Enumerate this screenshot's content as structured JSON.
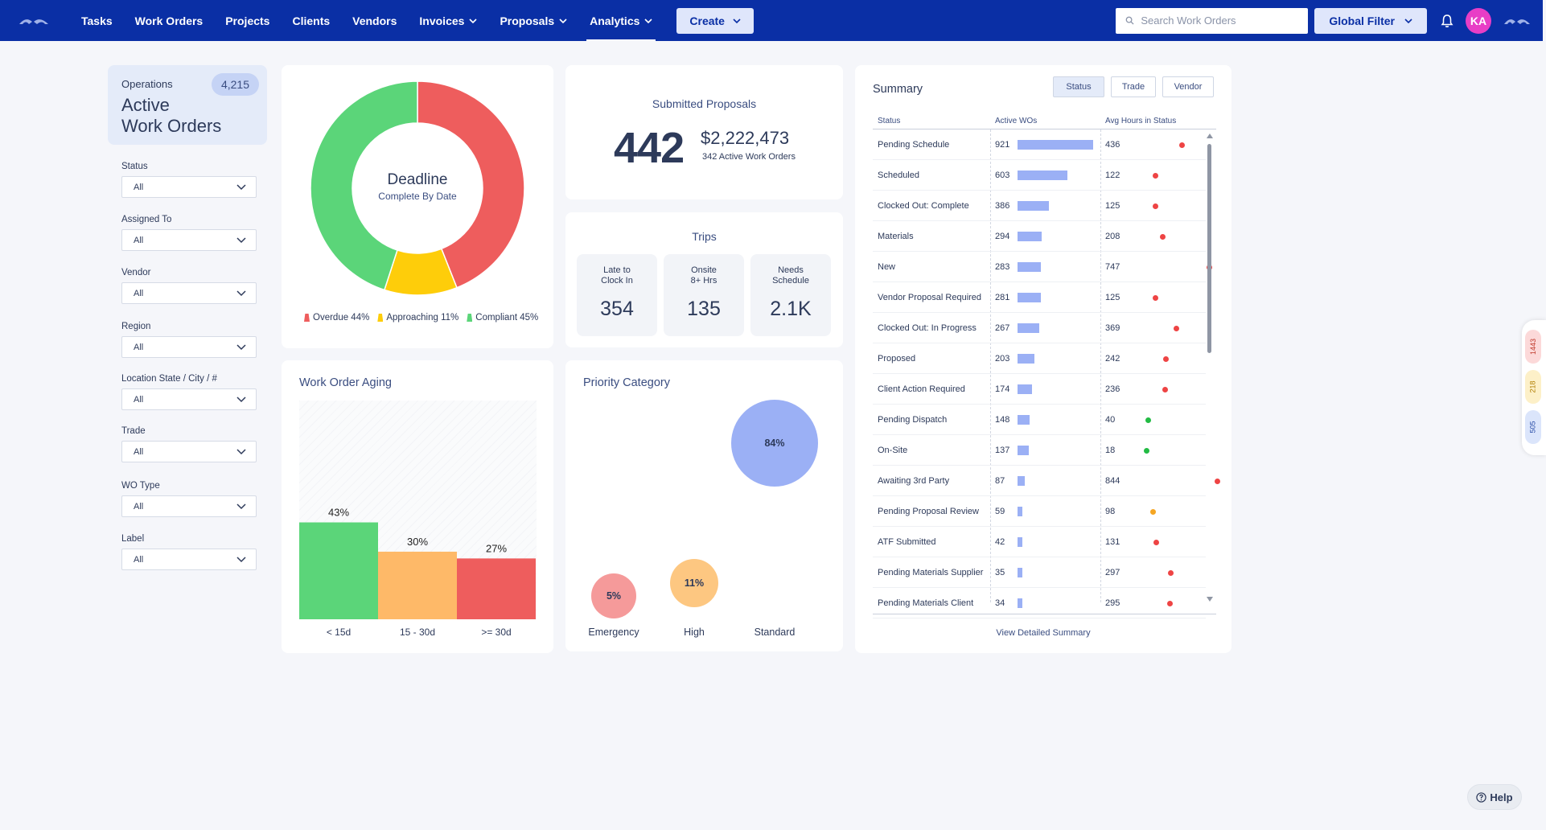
{
  "nav": {
    "items": [
      {
        "label": "Tasks",
        "dropdown": false
      },
      {
        "label": "Work Orders",
        "dropdown": false
      },
      {
        "label": "Projects",
        "dropdown": false
      },
      {
        "label": "Clients",
        "dropdown": false
      },
      {
        "label": "Vendors",
        "dropdown": false
      },
      {
        "label": "Invoices",
        "dropdown": true
      },
      {
        "label": "Proposals",
        "dropdown": true
      },
      {
        "label": "Analytics",
        "dropdown": true
      }
    ],
    "create_label": "Create",
    "search_placeholder": "Search Work Orders",
    "global_filter_label": "Global Filter",
    "avatar_initials": "KA",
    "colors": {
      "bar": "#0a2fa5",
      "avatar": "#e83ec6"
    }
  },
  "sidebar": {
    "kicker": "Operations",
    "title_line1": "Active",
    "title_line2": "Work Orders",
    "count": "4,215",
    "filters": [
      {
        "label": "Status",
        "value": "All"
      },
      {
        "label": "Assigned To",
        "value": "All"
      },
      {
        "label": "Vendor",
        "value": "All"
      },
      {
        "label": "Region",
        "value": "All"
      },
      {
        "label": "Location State / City / #",
        "value": "All"
      },
      {
        "label": "Trade",
        "value": "All"
      },
      {
        "label": "WO Type",
        "value": "All"
      },
      {
        "label": "Label",
        "value": "All"
      }
    ]
  },
  "deadline": {
    "center_title": "Deadline",
    "center_sub": "Complete By Date",
    "legend": [
      {
        "label": "Overdue 44%",
        "color": "#ee5d5d"
      },
      {
        "label": "Approaching 11%",
        "color": "#fecd0a"
      },
      {
        "label": "Compliant 45%",
        "color": "#5bd579"
      }
    ]
  },
  "proposals": {
    "title": "Submitted Proposals",
    "count": "442",
    "amount": "$2,222,473",
    "sub": "342 Active Work Orders"
  },
  "trips": {
    "title": "Trips",
    "boxes": [
      {
        "label": "Late to\nClock In",
        "value": "354"
      },
      {
        "label": "Onsite\n8+ Hrs",
        "value": "135"
      },
      {
        "label": "Needs\nSchedule",
        "value": "2.1K"
      }
    ]
  },
  "aging": {
    "title": "Work Order Aging"
  },
  "priority": {
    "title": "Priority Category"
  },
  "summary": {
    "title": "Summary",
    "tabs": [
      "Status",
      "Trade",
      "Vendor"
    ],
    "columns": [
      "Status",
      "Active WOs",
      "Avg Hours in Status"
    ],
    "rows": [
      {
        "status": "Pending Schedule",
        "active": 921,
        "hours": 436,
        "dot": "#ee4444"
      },
      {
        "status": "Scheduled",
        "active": 603,
        "hours": 122,
        "dot": "#ee4444"
      },
      {
        "status": "Clocked Out: Complete",
        "active": 386,
        "hours": 125,
        "dot": "#ee4444"
      },
      {
        "status": "Materials",
        "active": 294,
        "hours": 208,
        "dot": "#ee4444"
      },
      {
        "status": "New",
        "active": 283,
        "hours": 747,
        "dot": "#ee4444"
      },
      {
        "status": "Vendor Proposal Required",
        "active": 281,
        "hours": 125,
        "dot": "#ee4444"
      },
      {
        "status": "Clocked Out: In Progress",
        "active": 267,
        "hours": 369,
        "dot": "#ee4444"
      },
      {
        "status": "Proposed",
        "active": 203,
        "hours": 242,
        "dot": "#ee4444"
      },
      {
        "status": "Client Action Required",
        "active": 174,
        "hours": 236,
        "dot": "#ee4444"
      },
      {
        "status": "Pending Dispatch",
        "active": 148,
        "hours": 40,
        "dot": "#22bb44"
      },
      {
        "status": "On-Site",
        "active": 137,
        "hours": 18,
        "dot": "#22bb44"
      },
      {
        "status": "Awaiting 3rd Party",
        "active": 87,
        "hours": 844,
        "dot": "#ee4444"
      },
      {
        "status": "Pending Proposal Review",
        "active": 59,
        "hours": 98,
        "dot": "#f5a623"
      },
      {
        "status": "ATF Submitted",
        "active": 42,
        "hours": 131,
        "dot": "#ee4444"
      },
      {
        "status": "Pending Materials Supplier",
        "active": 35,
        "hours": 297,
        "dot": "#ee4444"
      },
      {
        "status": "Pending Materials Client",
        "active": 34,
        "hours": 295,
        "dot": "#ee4444"
      }
    ],
    "link": "View Detailed Summary"
  },
  "side_pill": [
    {
      "label": "1443",
      "bg": "#fcd9d9",
      "fg": "#c0392b"
    },
    {
      "label": "218",
      "bg": "#fdf0c8",
      "fg": "#b07d00"
    },
    {
      "label": "505",
      "bg": "#dbe5fb",
      "fg": "#2a4ea8"
    }
  ],
  "help_label": "Help",
  "chart_data": [
    {
      "type": "pie",
      "title": "Deadline",
      "subtitle": "Complete By Date",
      "categories": [
        "Overdue",
        "Approaching",
        "Compliant"
      ],
      "values": [
        44,
        11,
        45
      ],
      "colors": [
        "#ee5d5d",
        "#fecd0a",
        "#5bd579"
      ]
    },
    {
      "type": "bar",
      "title": "Work Order Aging",
      "categories": [
        "< 15d",
        "15 - 30d",
        ">= 30d"
      ],
      "values": [
        43,
        30,
        27
      ],
      "labels": [
        "43%",
        "30%",
        "27%"
      ],
      "colors": [
        "#5bd579",
        "#feb968",
        "#ee5d5d"
      ],
      "ylim": [
        0,
        100
      ]
    },
    {
      "type": "scatter",
      "title": "Priority Category",
      "categories": [
        "Emergency",
        "High",
        "Standard"
      ],
      "values": [
        5,
        11,
        84
      ],
      "labels": [
        "5%",
        "11%",
        "84%"
      ],
      "colors": [
        "#f59a9a",
        "#fdc781",
        "#9bb0f5"
      ]
    }
  ]
}
